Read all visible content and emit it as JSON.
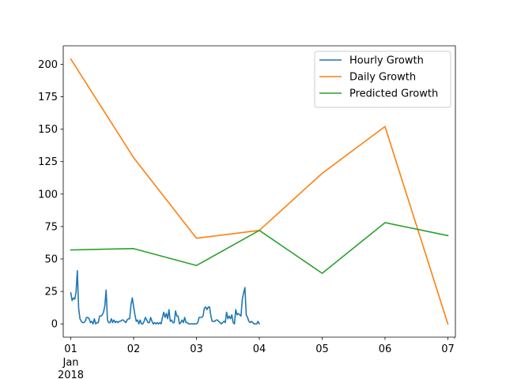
{
  "chart_data": {
    "type": "line",
    "title": "",
    "xlabel": "",
    "ylabel": "",
    "xlim": [
      -0.12,
      6.12
    ],
    "ylim": [
      -10.2,
      214.2
    ],
    "x_ticks": [
      {
        "pos": 0,
        "label": "01",
        "sub": [
          "Jan",
          "2018"
        ]
      },
      {
        "pos": 1,
        "label": "02",
        "sub": []
      },
      {
        "pos": 2,
        "label": "03",
        "sub": []
      },
      {
        "pos": 3,
        "label": "04",
        "sub": []
      },
      {
        "pos": 4,
        "label": "05",
        "sub": []
      },
      {
        "pos": 5,
        "label": "06",
        "sub": []
      },
      {
        "pos": 6,
        "label": "07",
        "sub": []
      }
    ],
    "y_ticks": [
      0,
      25,
      50,
      75,
      100,
      125,
      150,
      175,
      200
    ],
    "grid": false,
    "legend_position": "upper right",
    "series": [
      {
        "name": "Hourly Growth",
        "color": "#1f77b4",
        "x_step_days": 0.0208333,
        "values": [
          24,
          18,
          20,
          19,
          24,
          41,
          12,
          4,
          2,
          1,
          1,
          2,
          5,
          5,
          4,
          1,
          2,
          0,
          4,
          0,
          1,
          1,
          6,
          6,
          7,
          9,
          14,
          26,
          3,
          1,
          1,
          4,
          1,
          3,
          1,
          2,
          1,
          2,
          2,
          3,
          3,
          2,
          1,
          3,
          4,
          4,
          15,
          20,
          13,
          7,
          2,
          3,
          0,
          3,
          0,
          0,
          2,
          5,
          3,
          1,
          1,
          5,
          2,
          0,
          1,
          0,
          1,
          0,
          1,
          0,
          5,
          9,
          5,
          8,
          4,
          11,
          2,
          3,
          1,
          1,
          10,
          6,
          6,
          0,
          1,
          3,
          1,
          5,
          1,
          1,
          0,
          0,
          0,
          0,
          0,
          0,
          0,
          1,
          5,
          5,
          5,
          6,
          12,
          13,
          11,
          13,
          13,
          6,
          2,
          2,
          2,
          3,
          3,
          2,
          1,
          0,
          1,
          2,
          1,
          9,
          4,
          6,
          4,
          7,
          1,
          0,
          11,
          7,
          8,
          7,
          6,
          19,
          24,
          28,
          7,
          5,
          2,
          1,
          2,
          1,
          0,
          0,
          0,
          2,
          0
        ]
      },
      {
        "name": "Daily Growth",
        "color": "#ff7f0e",
        "x": [
          0,
          1,
          2,
          3,
          4,
          5,
          6
        ],
        "values": [
          204,
          128,
          66,
          72,
          116,
          152,
          0
        ]
      },
      {
        "name": "Predicted Growth",
        "color": "#2ca02c",
        "x": [
          0,
          1,
          2,
          3,
          4,
          5,
          6
        ],
        "values": [
          57,
          58,
          45,
          72,
          39,
          78,
          68
        ]
      }
    ]
  }
}
